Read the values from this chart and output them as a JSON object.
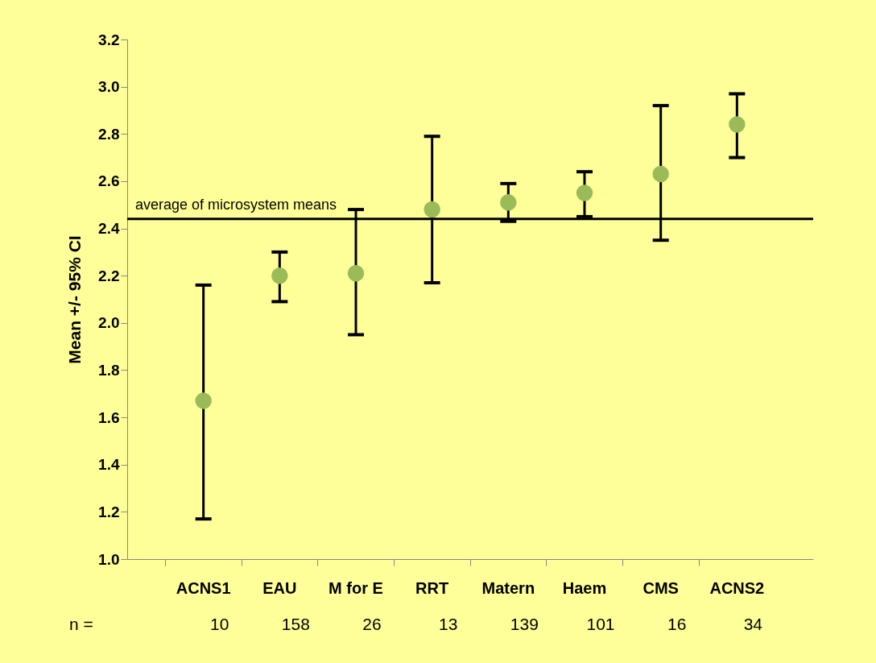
{
  "chart_data": {
    "type": "scatter",
    "ylabel": "Mean +/- 95% CI",
    "categories": [
      "ACNS1",
      "EAU",
      "M for E",
      "RRT",
      "Matern",
      "Haem",
      "CMS",
      "ACNS2"
    ],
    "series": [
      {
        "color": "#9bbb59",
        "values": [
          1.67,
          2.2,
          2.21,
          2.48,
          2.51,
          2.55,
          2.63,
          2.84
        ],
        "errors": [
          [
            1.17,
            2.16
          ],
          [
            2.09,
            2.3
          ],
          [
            1.95,
            2.48
          ],
          [
            2.17,
            2.79
          ],
          [
            2.43,
            2.59
          ],
          [
            2.45,
            2.64
          ],
          [
            2.35,
            2.92
          ],
          [
            2.7,
            2.97
          ]
        ]
      }
    ],
    "ylim": [
      1.0,
      3.2
    ],
    "yticks": [
      {
        "value": 1.0,
        "label": "1.0"
      },
      {
        "value": 1.2,
        "label": "1.2"
      },
      {
        "value": 1.4,
        "label": "1.4"
      },
      {
        "value": 1.6,
        "label": "1.6"
      },
      {
        "value": 1.8,
        "label": "1.8"
      },
      {
        "value": 2.0,
        "label": "2.0"
      },
      {
        "value": 2.2,
        "label": "2.2"
      },
      {
        "value": 2.4,
        "label": "2.4"
      },
      {
        "value": 2.6,
        "label": "2.6"
      },
      {
        "value": 2.8,
        "label": "2.8"
      },
      {
        "value": 3.0,
        "label": "3.0"
      },
      {
        "value": 3.2,
        "label": "3.2"
      }
    ],
    "ref_lines": [
      {
        "axis": "y",
        "value": 2.44,
        "label": "average of  microsystem means",
        "color": "#000000"
      }
    ],
    "annotations": [
      "n =",
      "10",
      "158",
      "26",
      "13",
      "139",
      "101",
      "16",
      "34"
    ],
    "grid": false,
    "marker": "circle"
  }
}
